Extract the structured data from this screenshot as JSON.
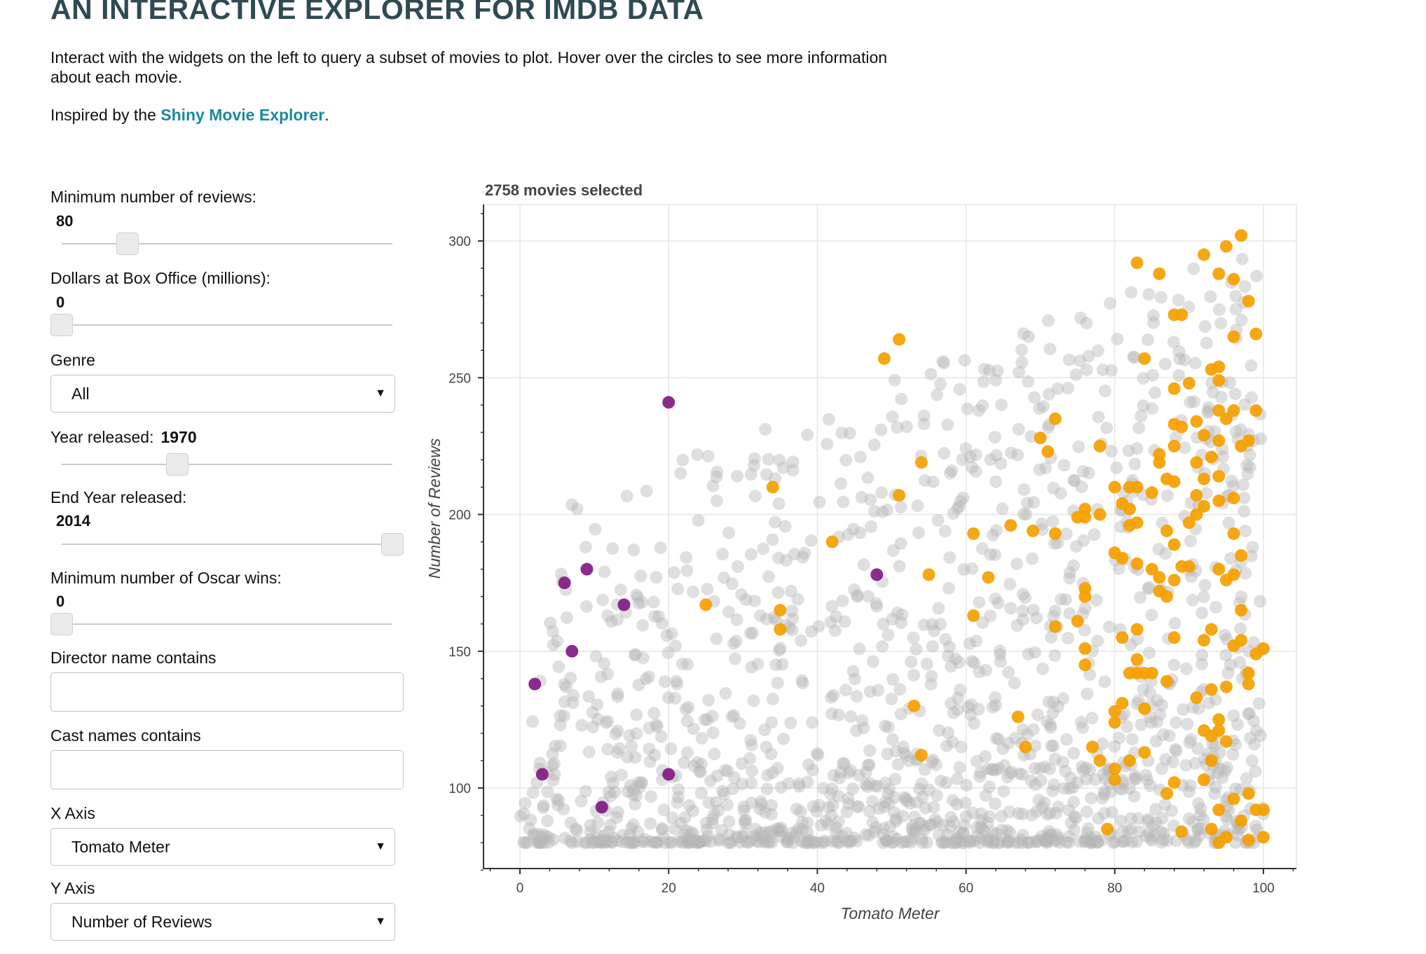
{
  "header": {
    "title": "AN INTERACTIVE EXPLORER FOR IMDB DATA",
    "description": "Interact with the widgets on the left to query a subset of movies to plot. Hover over the circles to see more information about each movie.",
    "inspired_prefix": "Inspired by the ",
    "inspired_link": "Shiny Movie Explorer",
    "inspired_suffix": "."
  },
  "controls": {
    "min_reviews": {
      "label": "Minimum number of reviews:",
      "value": "80",
      "fraction": 0.2
    },
    "box_office": {
      "label": "Dollars at Box Office (millions):",
      "value": "0",
      "fraction": 0.0
    },
    "genre": {
      "label": "Genre",
      "selected": "All"
    },
    "year": {
      "label": "Year released:",
      "value": "1970",
      "fraction": 0.35
    },
    "end_year": {
      "label": "End Year released:",
      "value": "2014",
      "fraction": 1.0
    },
    "oscar_wins": {
      "label": "Minimum number of Oscar wins:",
      "value": "0",
      "fraction": 0.0
    },
    "director": {
      "label": "Director name contains",
      "value": ""
    },
    "cast": {
      "label": "Cast names contains",
      "value": ""
    },
    "x_axis": {
      "label": "X Axis",
      "selected": "Tomato Meter"
    },
    "y_axis": {
      "label": "Y Axis",
      "selected": "Number of Reviews"
    }
  },
  "colors": {
    "gray_points": "#b8b8b8",
    "orange_points": "#f5a000",
    "purple_points": "#821a86",
    "link": "#1d8a99",
    "title": "#2f4a52"
  },
  "chart_data": {
    "type": "scatter",
    "title": "2758 movies selected",
    "xlabel": "Tomato Meter",
    "ylabel": "Number of Reviews",
    "xlim": [
      -4,
      104
    ],
    "ylim": [
      70,
      315
    ],
    "x_ticks": [
      0,
      20,
      40,
      60,
      80,
      100
    ],
    "y_ticks": [
      100,
      150,
      200,
      250,
      300
    ],
    "grid": true,
    "background_points": {
      "count": 2758,
      "color": "#b8b8b8",
      "note_density": "dense cloud 0-100 x, 80-300 y"
    },
    "series": [
      {
        "color": "#821a86",
        "points": [
          [
            2,
            138
          ],
          [
            3,
            105
          ],
          [
            6,
            175
          ],
          [
            7,
            150
          ],
          [
            9,
            180
          ],
          [
            11,
            93
          ],
          [
            14,
            167
          ],
          [
            20,
            241
          ],
          [
            20,
            105
          ],
          [
            48,
            178
          ]
        ]
      },
      {
        "color": "#f5a000",
        "points": [
          [
            25,
            167
          ],
          [
            34,
            210
          ],
          [
            35,
            165
          ],
          [
            35,
            158
          ],
          [
            42,
            190
          ],
          [
            49,
            257
          ],
          [
            51,
            264
          ],
          [
            51,
            207
          ],
          [
            54,
            219
          ],
          [
            54,
            112
          ],
          [
            55,
            178
          ],
          [
            53,
            130
          ],
          [
            61,
            193
          ],
          [
            61,
            163
          ],
          [
            63,
            177
          ],
          [
            66,
            196
          ],
          [
            68,
            115
          ],
          [
            69,
            194
          ],
          [
            70,
            228
          ],
          [
            71,
            223
          ],
          [
            72,
            235
          ],
          [
            72,
            193
          ],
          [
            72,
            159
          ],
          [
            67,
            126
          ],
          [
            75,
            199
          ],
          [
            75,
            161
          ],
          [
            76,
            202
          ],
          [
            76,
            199
          ],
          [
            76,
            173
          ],
          [
            76,
            170
          ],
          [
            76,
            151
          ],
          [
            76,
            145
          ],
          [
            77,
            115
          ],
          [
            78,
            225
          ],
          [
            78,
            200
          ],
          [
            78,
            110
          ],
          [
            79,
            85
          ],
          [
            80,
            210
          ],
          [
            80,
            186
          ],
          [
            80,
            128
          ],
          [
            80,
            124
          ],
          [
            80,
            107
          ],
          [
            80,
            103
          ],
          [
            81,
            204
          ],
          [
            81,
            184
          ],
          [
            81,
            155
          ],
          [
            81,
            131
          ],
          [
            82,
            210
          ],
          [
            82,
            202
          ],
          [
            82,
            196
          ],
          [
            82,
            142
          ],
          [
            82,
            110
          ],
          [
            83,
            292
          ],
          [
            83,
            210
          ],
          [
            83,
            197
          ],
          [
            83,
            182
          ],
          [
            83,
            158
          ],
          [
            83,
            147
          ],
          [
            83,
            142
          ],
          [
            84,
            257
          ],
          [
            84,
            142
          ],
          [
            84,
            129
          ],
          [
            84,
            113
          ],
          [
            85,
            208
          ],
          [
            85,
            180
          ],
          [
            85,
            142
          ],
          [
            86,
            288
          ],
          [
            86,
            222
          ],
          [
            86,
            219
          ],
          [
            86,
            177
          ],
          [
            86,
            172
          ],
          [
            87,
            213
          ],
          [
            87,
            194
          ],
          [
            87,
            170
          ],
          [
            87,
            139
          ],
          [
            87,
            98
          ],
          [
            88,
            273
          ],
          [
            88,
            246
          ],
          [
            88,
            233
          ],
          [
            88,
            225
          ],
          [
            88,
            212
          ],
          [
            88,
            189
          ],
          [
            88,
            176
          ],
          [
            88,
            155
          ],
          [
            88,
            102
          ],
          [
            89,
            273
          ],
          [
            89,
            232
          ],
          [
            89,
            181
          ],
          [
            89,
            84
          ],
          [
            90,
            248
          ],
          [
            90,
            197
          ],
          [
            90,
            181
          ],
          [
            91,
            234
          ],
          [
            91,
            219
          ],
          [
            91,
            207
          ],
          [
            91,
            200
          ],
          [
            91,
            133
          ],
          [
            92,
            295
          ],
          [
            92,
            229
          ],
          [
            92,
            213
          ],
          [
            92,
            203
          ],
          [
            92,
            154
          ],
          [
            92,
            121
          ],
          [
            92,
            103
          ],
          [
            93,
            253
          ],
          [
            93,
            221
          ],
          [
            93,
            158
          ],
          [
            93,
            136
          ],
          [
            93,
            119
          ],
          [
            93,
            110
          ],
          [
            94,
            288
          ],
          [
            94,
            254
          ],
          [
            94,
            249
          ],
          [
            94,
            238
          ],
          [
            94,
            227
          ],
          [
            94,
            214
          ],
          [
            94,
            205
          ],
          [
            94,
            180
          ],
          [
            94,
            125
          ],
          [
            94,
            121
          ],
          [
            94,
            92
          ],
          [
            95,
            298
          ],
          [
            95,
            235
          ],
          [
            95,
            176
          ],
          [
            95,
            137
          ],
          [
            95,
            117
          ],
          [
            96,
            286
          ],
          [
            96,
            265
          ],
          [
            96,
            238
          ],
          [
            96,
            206
          ],
          [
            96,
            193
          ],
          [
            96,
            178
          ],
          [
            96,
            152
          ],
          [
            96,
            96
          ],
          [
            97,
            302
          ],
          [
            97,
            225
          ],
          [
            97,
            185
          ],
          [
            97,
            165
          ],
          [
            97,
            154
          ],
          [
            98,
            278
          ],
          [
            98,
            227
          ],
          [
            98,
            142
          ],
          [
            98,
            138
          ],
          [
            98,
            98
          ],
          [
            98,
            81
          ],
          [
            99,
            266
          ],
          [
            99,
            238
          ],
          [
            99,
            149
          ],
          [
            99,
            92
          ],
          [
            100,
            151
          ],
          [
            100,
            92
          ],
          [
            100,
            82
          ],
          [
            95,
            82
          ],
          [
            94,
            80
          ],
          [
            97,
            88
          ],
          [
            93,
            85
          ]
        ]
      }
    ]
  }
}
